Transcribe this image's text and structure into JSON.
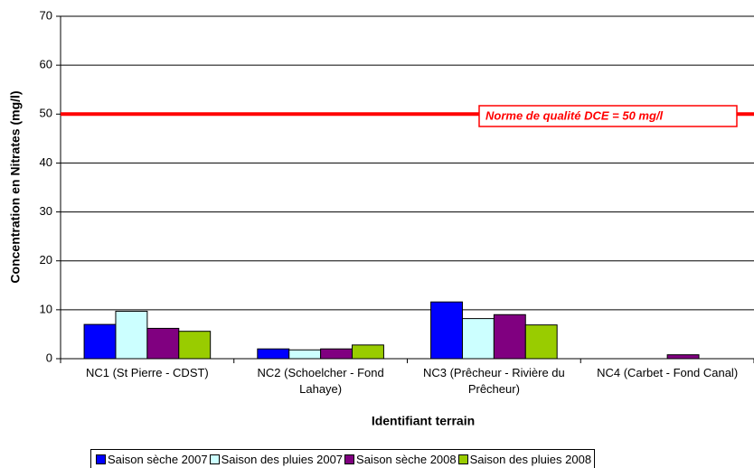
{
  "chart_data": {
    "type": "bar",
    "categories": [
      "NC1 (St Pierre - CDST)",
      "NC2 (Schoelcher - Fond Lahaye)",
      "NC3 (Prêcheur - Rivière du Prêcheur)",
      "NC4 (Carbet - Fond Canal)"
    ],
    "series": [
      {
        "name": "Saison sèche 2007",
        "color": "#0000ff",
        "values": [
          7,
          2,
          11.6,
          0
        ]
      },
      {
        "name": "Saison des pluies 2007",
        "color": "#ccffff",
        "values": [
          9.7,
          1.8,
          8.2,
          0
        ]
      },
      {
        "name": "Saison sèche 2008",
        "color": "#800080",
        "values": [
          6.2,
          2,
          9,
          0.8
        ]
      },
      {
        "name": "Saison des pluies 2008",
        "color": "#99cc00",
        "values": [
          5.6,
          2.8,
          6.9,
          0
        ]
      }
    ],
    "xlabel": "Identifiant terrain",
    "ylabel": "Concentration en Nitrates (mg/l)",
    "ylim": [
      0,
      70
    ],
    "yticks": [
      0,
      10,
      20,
      30,
      40,
      50,
      60,
      70
    ],
    "grid": true,
    "reference_line": {
      "value": 50,
      "label": "Norme de qualité DCE = 50 mg/l",
      "color": "#ff0000"
    },
    "legend": "bottom"
  }
}
